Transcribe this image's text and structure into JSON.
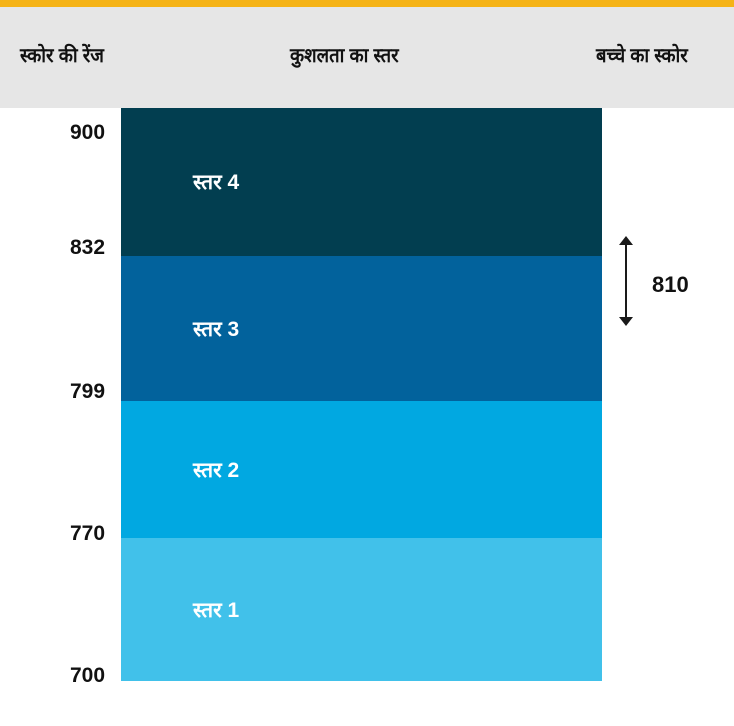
{
  "header": {
    "score_range_label": "स्कोर की रेंज",
    "proficiency_level_label": "कुशलता का स्तर",
    "child_score_label": "बच्चे का स्कोर"
  },
  "ticks": [
    "900",
    "832",
    "799",
    "770",
    "700"
  ],
  "levels": [
    {
      "label": "स्तर 4",
      "color": "#023e50"
    },
    {
      "label": "स्तर 3",
      "color": "#02629c"
    },
    {
      "label": "स्तर 2",
      "color": "#01a8e1"
    },
    {
      "label": "स्तर 1",
      "color": "#41c1ea"
    }
  ],
  "child_score": "810",
  "colors": {
    "accent": "#f5b316",
    "header_bg": "#e6e6e6",
    "arrow": "#1a1a1a"
  }
}
